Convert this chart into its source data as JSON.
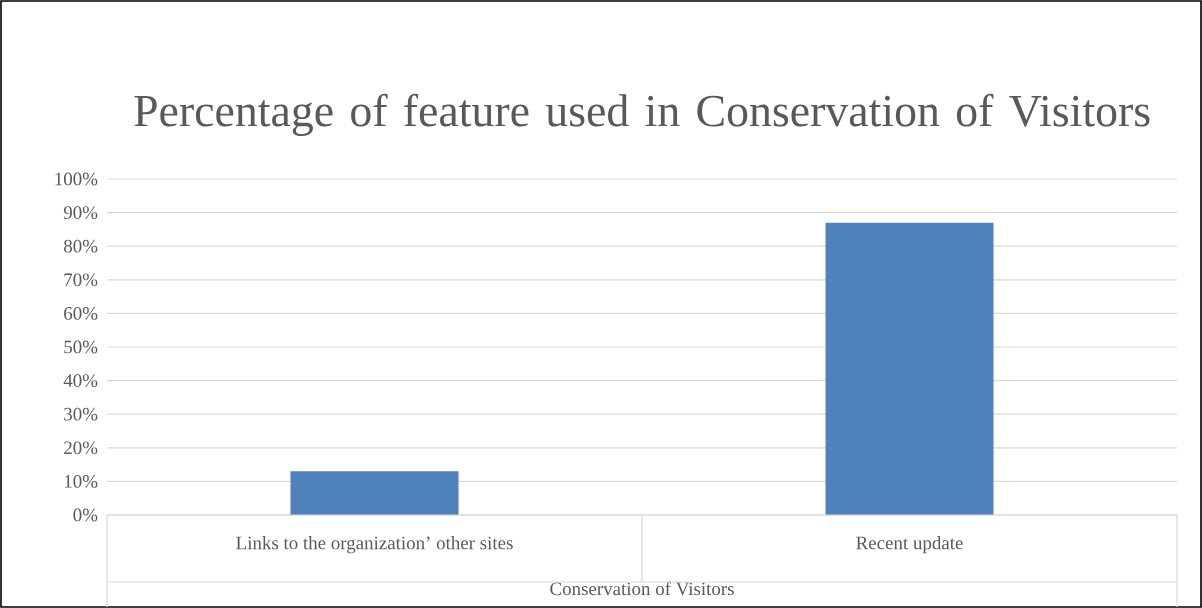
{
  "chart_data": {
    "type": "bar",
    "title": "Percentage of feature used in Conservation of Visitors",
    "xlabel": "Conservation of Visitors",
    "categories": [
      "Links to the organization’ other sites",
      "Recent update"
    ],
    "values": [
      13,
      87
    ],
    "color": "#4f81bd",
    "grid": "y",
    "ylim": [
      0,
      100
    ],
    "yticks": [
      {
        "value": 0,
        "label": "0%"
      },
      {
        "value": 10,
        "label": "10%"
      },
      {
        "value": 20,
        "label": "20%"
      },
      {
        "value": 30,
        "label": "30%"
      },
      {
        "value": 40,
        "label": "40%"
      },
      {
        "value": 50,
        "label": "50%"
      },
      {
        "value": 60,
        "label": "60%"
      },
      {
        "value": 70,
        "label": "70%"
      },
      {
        "value": 80,
        "label": "80%"
      },
      {
        "value": 90,
        "label": "90%"
      },
      {
        "value": 100,
        "label": "100%"
      }
    ]
  }
}
